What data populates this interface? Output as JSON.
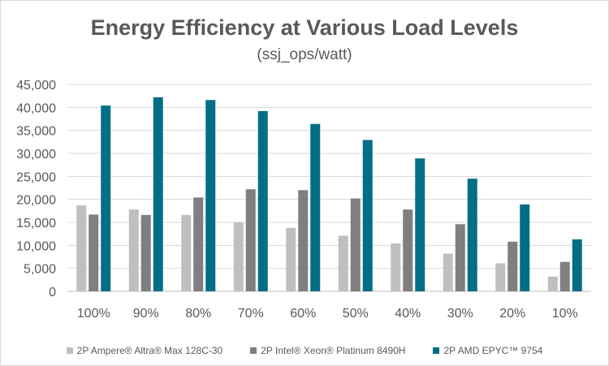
{
  "chart_data": {
    "type": "bar",
    "title": "Energy Efficiency at Various Load Levels",
    "subtitle": "(ssj_ops/watt)",
    "categories": [
      "100%",
      "90%",
      "80%",
      "70%",
      "60%",
      "50%",
      "40%",
      "30%",
      "20%",
      "10%"
    ],
    "series": [
      {
        "name": "2P Ampere® Altra® Max 128C-30",
        "color": "#bfbfbf",
        "values": [
          18700,
          17800,
          16600,
          15000,
          13800,
          12100,
          10400,
          8200,
          6100,
          3200
        ]
      },
      {
        "name": "2P Intel® Xeon® Platinum 8490H",
        "color": "#7f7f7f",
        "values": [
          16700,
          16600,
          20400,
          22200,
          22000,
          20200,
          17800,
          14600,
          10800,
          6400
        ]
      },
      {
        "name": "2P AMD EPYC™ 9754",
        "color": "#006f85",
        "values": [
          40400,
          42200,
          41600,
          39200,
          36400,
          32900,
          28900,
          24500,
          18900,
          11300
        ]
      }
    ],
    "yticks": [
      "0",
      "5,000",
      "10,000",
      "15,000",
      "20,000",
      "25,000",
      "30,000",
      "35,000",
      "40,000",
      "45,000"
    ],
    "ylim": [
      0,
      45000
    ],
    "grid": true,
    "legend": "bottom"
  }
}
